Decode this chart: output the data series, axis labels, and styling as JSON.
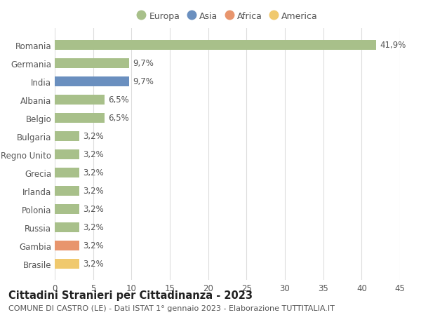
{
  "categories": [
    "Romania",
    "Germania",
    "India",
    "Albania",
    "Belgio",
    "Bulgaria",
    "Regno Unito",
    "Grecia",
    "Irlanda",
    "Polonia",
    "Russia",
    "Gambia",
    "Brasile"
  ],
  "values": [
    41.9,
    9.7,
    9.7,
    6.5,
    6.5,
    3.2,
    3.2,
    3.2,
    3.2,
    3.2,
    3.2,
    3.2,
    3.2
  ],
  "labels": [
    "41,9%",
    "9,7%",
    "9,7%",
    "6,5%",
    "6,5%",
    "3,2%",
    "3,2%",
    "3,2%",
    "3,2%",
    "3,2%",
    "3,2%",
    "3,2%",
    "3,2%"
  ],
  "colors": [
    "#a8c08a",
    "#a8c08a",
    "#6a8fbf",
    "#a8c08a",
    "#a8c08a",
    "#a8c08a",
    "#a8c08a",
    "#a8c08a",
    "#a8c08a",
    "#a8c08a",
    "#a8c08a",
    "#e8956d",
    "#f0c96e"
  ],
  "legend": [
    {
      "label": "Europa",
      "color": "#a8c08a"
    },
    {
      "label": "Asia",
      "color": "#6a8fbf"
    },
    {
      "label": "Africa",
      "color": "#e8956d"
    },
    {
      "label": "America",
      "color": "#f0c96e"
    }
  ],
  "xlim": [
    0,
    45
  ],
  "xticks": [
    0,
    5,
    10,
    15,
    20,
    25,
    30,
    35,
    40,
    45
  ],
  "title": "Cittadini Stranieri per Cittadinanza - 2023",
  "subtitle": "COMUNE DI CASTRO (LE) - Dati ISTAT 1° gennaio 2023 - Elaborazione TUTTITALIA.IT",
  "background_color": "#ffffff",
  "grid_color": "#dddddd",
  "bar_height": 0.55,
  "title_fontsize": 10.5,
  "subtitle_fontsize": 8,
  "tick_fontsize": 8.5,
  "label_fontsize": 8.5
}
